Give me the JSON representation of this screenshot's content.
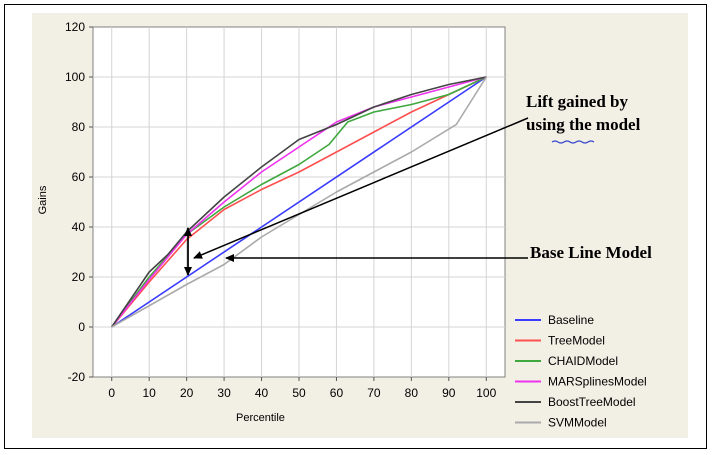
{
  "chart_data": {
    "type": "line",
    "xlabel": "Percentile",
    "ylabel": "Gains",
    "xlim": [
      -5,
      105
    ],
    "ylim": [
      -20,
      120
    ],
    "x_ticks": [
      0,
      10,
      20,
      30,
      40,
      50,
      60,
      70,
      80,
      90,
      100
    ],
    "y_ticks": [
      -20,
      0,
      20,
      40,
      60,
      80,
      100,
      120
    ],
    "grid": true,
    "legend_position": "bottom-right",
    "series": [
      {
        "name": "Baseline",
        "color": "#3b3bff",
        "x": [
          0,
          100
        ],
        "y": [
          0,
          100
        ]
      },
      {
        "name": "TreeModel",
        "color": "#ff5050",
        "x": [
          0,
          10,
          20,
          30,
          40,
          50,
          60,
          70,
          80,
          90,
          100
        ],
        "y": [
          0,
          18,
          35,
          47,
          55,
          62,
          70,
          78,
          86,
          93,
          100
        ]
      },
      {
        "name": "CHAIDModel",
        "color": "#3fa83f",
        "x": [
          0,
          10,
          20,
          30,
          40,
          50,
          58,
          63,
          70,
          80,
          90,
          100
        ],
        "y": [
          0,
          20,
          37,
          48,
          57,
          65,
          73,
          82,
          86,
          89,
          93,
          100
        ]
      },
      {
        "name": "MARSplinesModel",
        "color": "#ee33ee",
        "x": [
          0,
          10,
          20,
          30,
          40,
          50,
          60,
          70,
          80,
          90,
          100
        ],
        "y": [
          0,
          19,
          37,
          50,
          62,
          72,
          82,
          88,
          92,
          96,
          100
        ]
      },
      {
        "name": "BoostTreeModel",
        "color": "#444444",
        "x": [
          0,
          10,
          15,
          20,
          30,
          40,
          50,
          60,
          70,
          80,
          90,
          100
        ],
        "y": [
          0,
          22,
          29,
          38,
          52,
          64,
          75,
          81,
          88,
          93,
          97,
          100
        ]
      },
      {
        "name": "SVMModel",
        "color": "#aaaaaa",
        "x": [
          0,
          20,
          30,
          40,
          50,
          60,
          70,
          80,
          92,
          100
        ],
        "y": [
          0,
          17,
          25,
          36,
          45,
          54,
          62,
          70,
          81,
          100
        ]
      }
    ],
    "annotations": [
      {
        "text_lines": [
          "Lift gained by",
          "using the model"
        ]
      },
      {
        "text_lines": [
          "Base Line Model"
        ]
      }
    ]
  }
}
